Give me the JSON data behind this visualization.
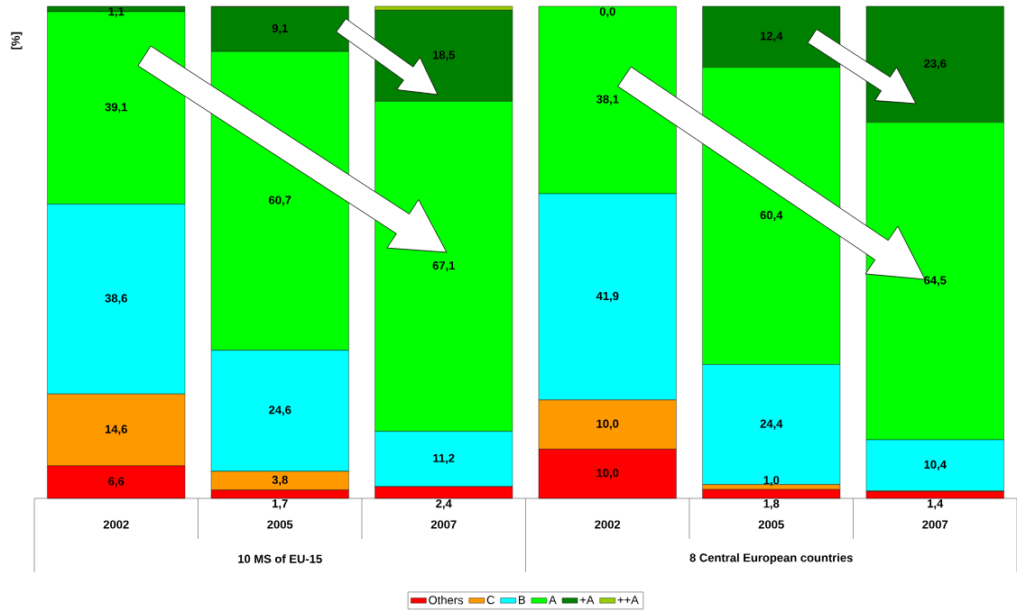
{
  "chart_data": {
    "type": "bar",
    "stacked": true,
    "ylabel": "[%]",
    "categories": [
      "2002",
      "2005",
      "2007",
      "2002",
      "2005",
      "2007"
    ],
    "ylim": [
      0,
      100
    ],
    "legend": "bottom",
    "annotations": [
      "10 MS of EU-15",
      "8 Central European countries"
    ],
    "series": [
      {
        "name": "Others",
        "color": "#ff0000",
        "values": [
          6.6,
          1.7,
          2.4,
          10.0,
          1.8,
          1.4
        ],
        "value_labels": [
          "6,6",
          "1,7",
          "2,4",
          "10,0",
          "1,8",
          "1,4"
        ]
      },
      {
        "name": "C",
        "color": "#ff9900",
        "values": [
          14.6,
          3.8,
          0,
          10.0,
          1.0,
          0.1
        ],
        "value_labels": [
          "14,6",
          "3,8",
          null,
          "10,0",
          "1,0",
          null
        ]
      },
      {
        "name": "B",
        "color": "#00ffff",
        "values": [
          38.6,
          24.6,
          11.2,
          41.9,
          24.4,
          10.4
        ],
        "value_labels": [
          "38,6",
          "24,6",
          "11,2",
          "41,9",
          "24,4",
          "10,4"
        ]
      },
      {
        "name": "A",
        "color": "#00ff00",
        "values": [
          39.1,
          60.7,
          67.1,
          38.1,
          60.4,
          64.5
        ],
        "value_labels": [
          "39,1",
          "60,7",
          "67,1",
          "38,1",
          "60,4",
          "64,5"
        ]
      },
      {
        "name": "+A",
        "color": "#008000",
        "values": [
          1.1,
          9.1,
          18.5,
          0.0,
          12.4,
          23.6
        ],
        "value_labels": [
          "1,1",
          "9,1",
          "18,5",
          "0,0",
          "12,4",
          "23,6"
        ]
      },
      {
        "name": "++A",
        "color": "#99cc00",
        "values": [
          0,
          0.1,
          0.8,
          0,
          0,
          0
        ]
      }
    ]
  }
}
